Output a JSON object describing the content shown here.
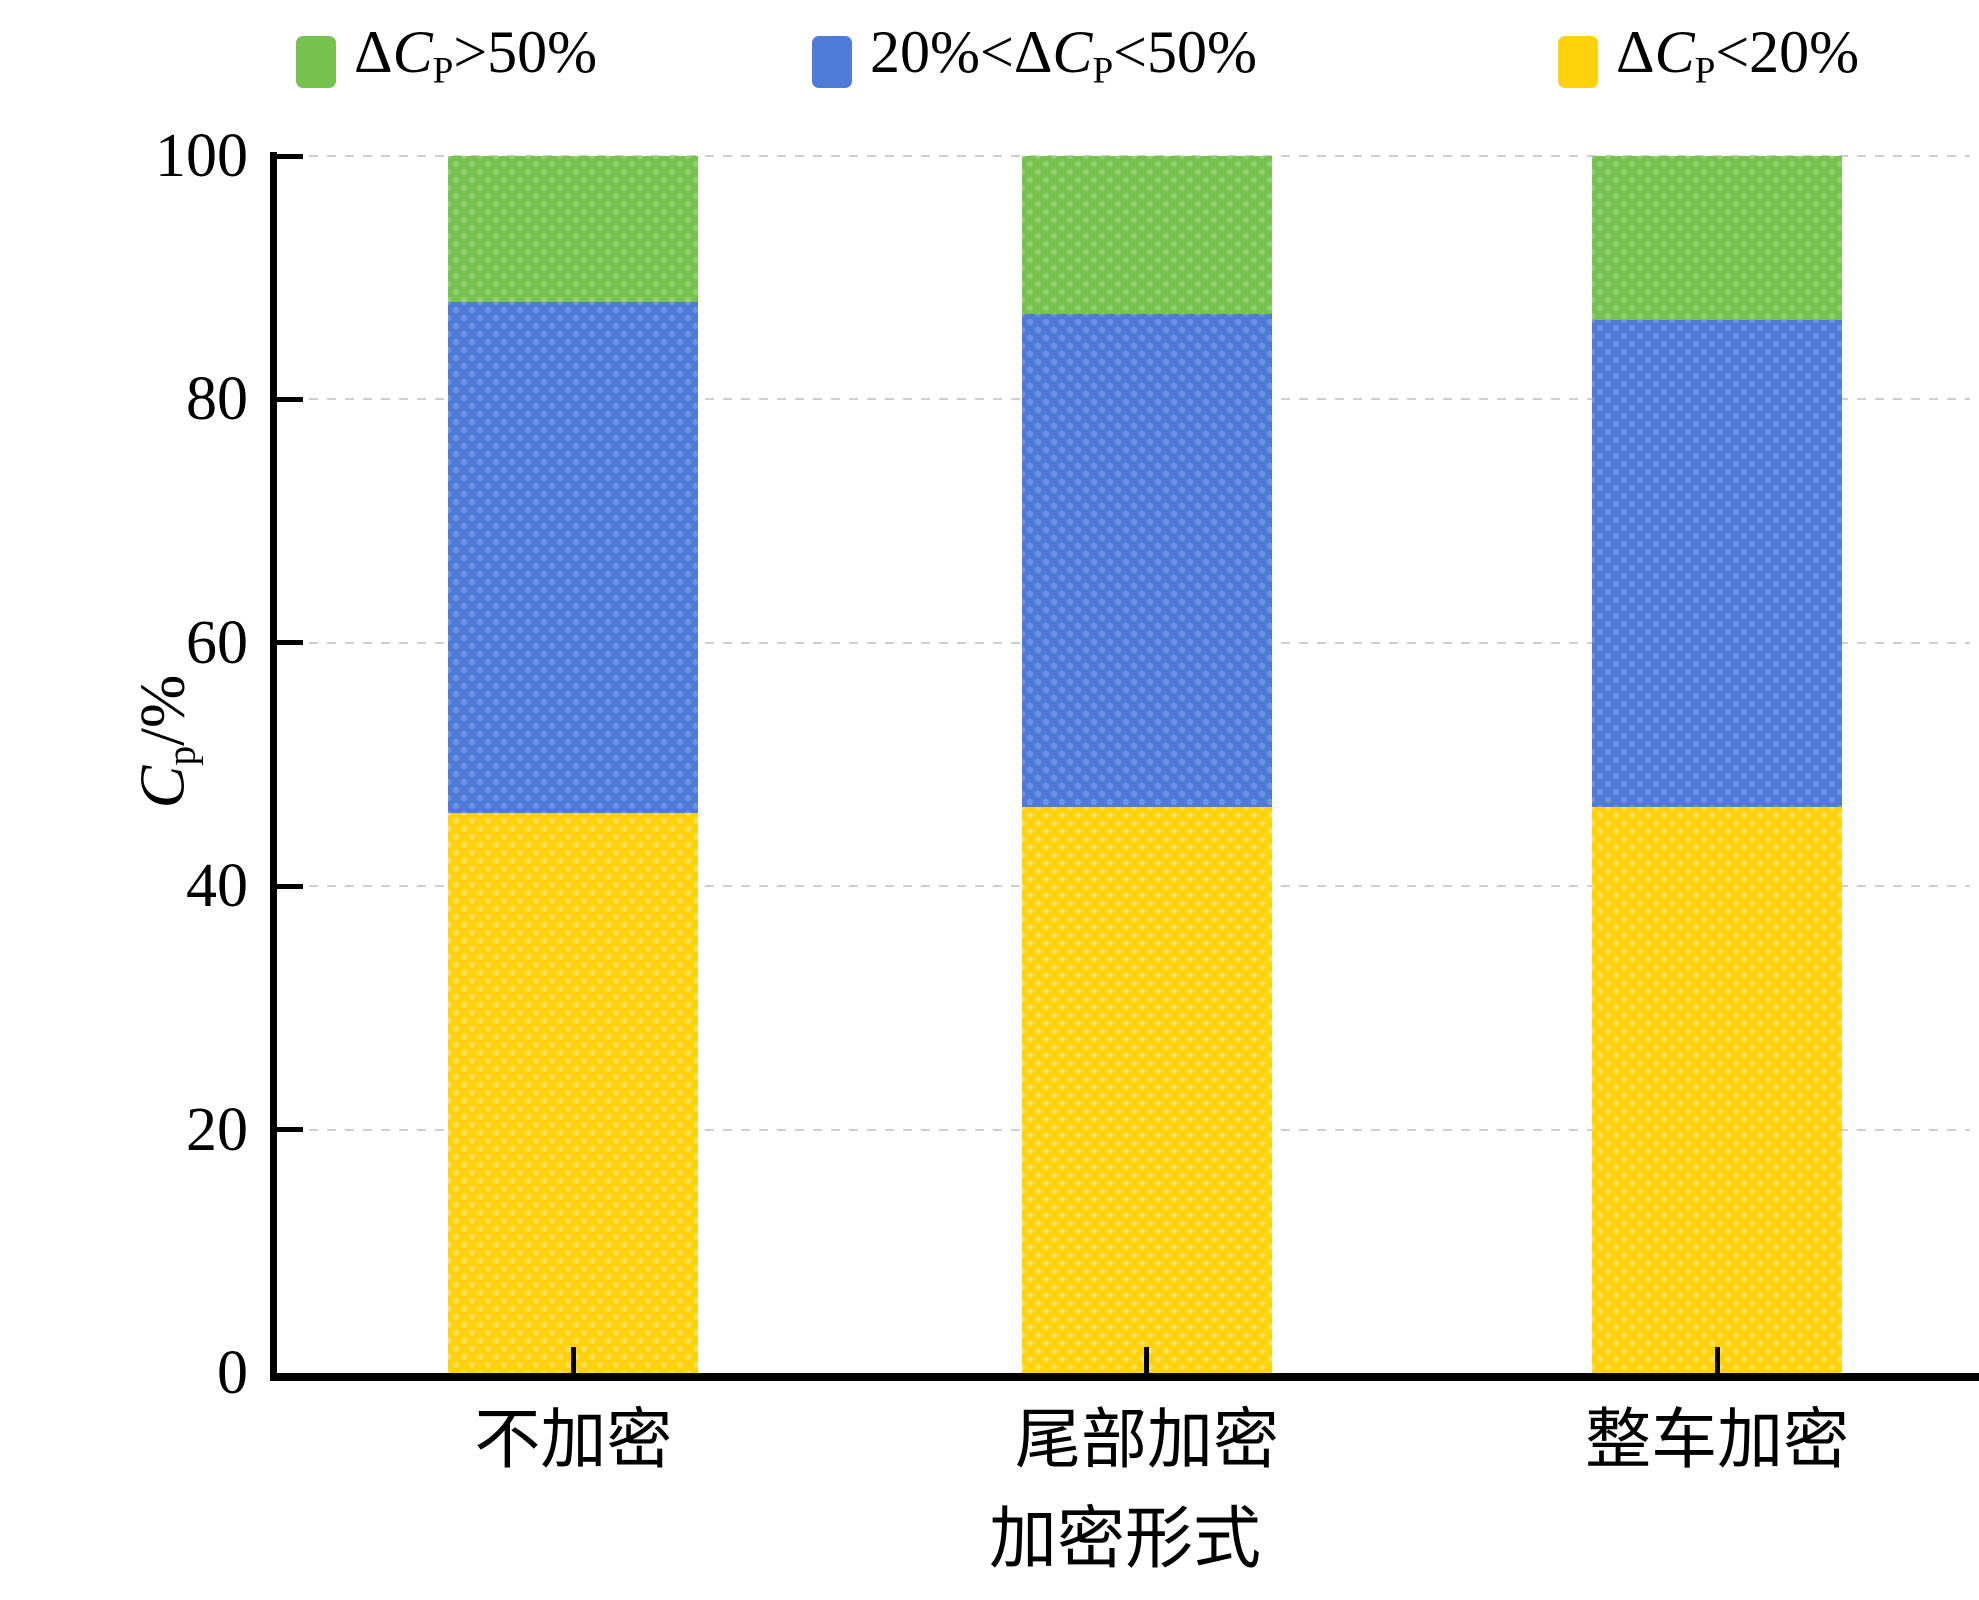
{
  "legend": {
    "items": [
      {
        "pre": "Δ",
        "sym": "C",
        "sub": "P",
        "post": ">50%",
        "color": "#76C24E"
      },
      {
        "pre": "20%<Δ",
        "sym": "C",
        "sub": "P",
        "post": "<50%",
        "color": "#4E7AD8"
      },
      {
        "pre": "Δ",
        "sym": "C",
        "sub": "P",
        "post": "<20%",
        "color": "#FFD20B"
      }
    ]
  },
  "yaxis": {
    "title": {
      "sym": "C",
      "sub": "p",
      "suffix": "/%"
    },
    "tick_labels": [
      "0",
      "20",
      "40",
      "60",
      "80",
      "100"
    ]
  },
  "xaxis": {
    "title": "加密形式",
    "categories": [
      "不加密",
      "尾部加密",
      "整车加密"
    ]
  },
  "chart_data": {
    "type": "bar",
    "stacked": true,
    "title": "",
    "xlabel": "加密形式",
    "ylabel": "Cp/%",
    "ylim": [
      0,
      100
    ],
    "yticks": [
      0,
      20,
      40,
      60,
      80,
      100
    ],
    "grid": "horizontal-dashed",
    "legend_position": "top",
    "categories": [
      "不加密",
      "尾部加密",
      "整车加密"
    ],
    "series": [
      {
        "name": "ΔCP<20%",
        "stack_position": "bottom",
        "color": "#FFD20B",
        "dot_color": "rgba(255,255,255,0.30)",
        "values": [
          46,
          46.5,
          46.5
        ]
      },
      {
        "name": "20%<ΔCP<50%",
        "stack_position": "middle",
        "color": "#4E7AD8",
        "dot_color": "rgba(255,255,255,0.18)",
        "values": [
          42,
          40.5,
          40
        ]
      },
      {
        "name": "ΔCP>50%",
        "stack_position": "top",
        "color": "#76C24E",
        "dot_color": "rgba(255,255,255,0.22)",
        "values": [
          12,
          13,
          13.5
        ]
      }
    ],
    "segment_boundaries_pct": {
      "不加密": {
        "yellow_top": 46,
        "blue_top": 88,
        "green_top": 100
      },
      "尾部加密": {
        "yellow_top": 46.5,
        "blue_top": 87,
        "green_top": 100
      },
      "整车加密": {
        "yellow_top": 46.5,
        "blue_top": 86.5,
        "green_top": 100
      }
    }
  }
}
